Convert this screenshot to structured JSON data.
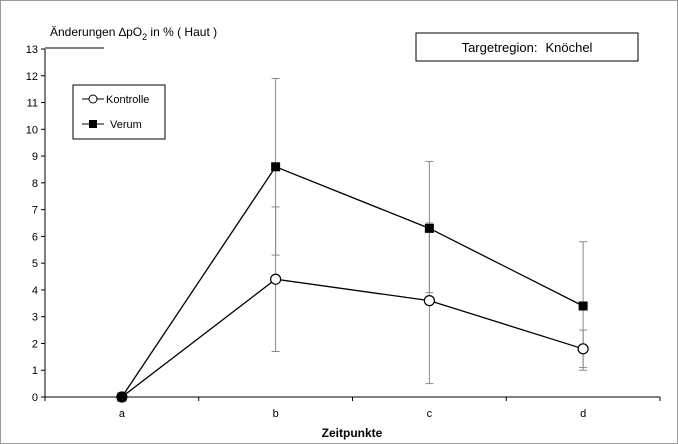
{
  "chart_data": {
    "type": "line",
    "title_main": "Änderungen ∆pO",
    "title_sub": "2",
    "title_rest": " in % ( Haut )",
    "xlabel": "Zeitpunkte",
    "categories": [
      "a",
      "b",
      "c",
      "d"
    ],
    "ylim": [
      0,
      13
    ],
    "yticks": [
      0,
      1,
      2,
      3,
      4,
      5,
      6,
      7,
      8,
      9,
      10,
      11,
      12,
      13
    ],
    "grid": false,
    "legend_placement": "top-left",
    "region_box": {
      "label": "Targetregion:",
      "value": "Knöchel"
    },
    "series": [
      {
        "name": "Kontrolle",
        "marker": "open-circle",
        "color": "#000000",
        "values": [
          0,
          4.4,
          3.6,
          1.8
        ],
        "error_low": [
          0,
          1.7,
          0.5,
          1.1
        ],
        "error_high": [
          0,
          7.1,
          6.5,
          2.5
        ]
      },
      {
        "name": "Verum",
        "marker": "filled-square",
        "color": "#000000",
        "values": [
          0,
          8.6,
          6.3,
          3.4
        ],
        "error_low": [
          0,
          5.3,
          3.9,
          1.0
        ],
        "error_high": [
          0,
          11.9,
          8.8,
          5.8
        ]
      }
    ]
  }
}
